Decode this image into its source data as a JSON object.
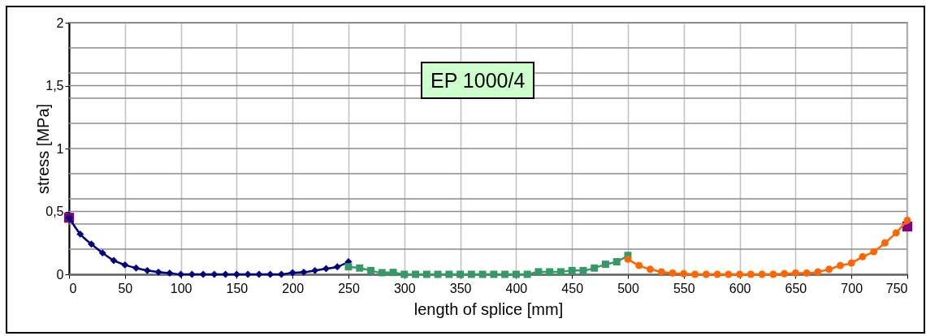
{
  "chart_data": {
    "type": "line",
    "xlabel": "length of splice [mm]",
    "ylabel": "stress [MPa]",
    "annotations": [
      "EP 1000/4"
    ],
    "xlim": [
      0,
      750
    ],
    "xticks": [
      0,
      50,
      100,
      150,
      200,
      250,
      300,
      350,
      400,
      450,
      500,
      550,
      600,
      650,
      700,
      750
    ],
    "ylim": [
      0,
      2
    ],
    "yticks": [
      0,
      {
        "value": 0.2,
        "label": null
      },
      {
        "value": 0.4,
        "label": null
      },
      {
        "value": 0.5,
        "label": "0,5"
      },
      {
        "value": 0.6,
        "label": null
      },
      {
        "value": 0.8,
        "label": null
      },
      1,
      {
        "value": 1.2,
        "label": null
      },
      {
        "value": 1.4,
        "label": null
      },
      {
        "value": 1.5,
        "label": "1,5"
      },
      {
        "value": 1.6,
        "label": null
      },
      {
        "value": 1.8,
        "label": null
      },
      2
    ],
    "grid": true,
    "series": [
      {
        "marker": "diamond",
        "color": "#000080",
        "x": [
          0,
          10,
          20,
          30,
          40,
          50,
          60,
          70,
          80,
          90,
          100,
          110,
          120,
          130,
          140,
          150,
          160,
          170,
          180,
          190,
          200,
          210,
          220,
          230,
          240,
          250
        ],
        "values": [
          0.45,
          0.32,
          0.24,
          0.17,
          0.11,
          0.075,
          0.05,
          0.03,
          0.017,
          0.01,
          0,
          0,
          0,
          0,
          0,
          0,
          0,
          0,
          0,
          0,
          0.013,
          0.017,
          0.03,
          0.045,
          0.06,
          0.1
        ]
      },
      {
        "marker": "square",
        "color": "#339966",
        "x": [
          250,
          260,
          270,
          280,
          290,
          300,
          310,
          320,
          330,
          340,
          350,
          360,
          370,
          380,
          390,
          400,
          410,
          420,
          430,
          440,
          450,
          460,
          470,
          480,
          490,
          500
        ],
        "values": [
          0.06,
          0.05,
          0.03,
          0.013,
          0.015,
          0,
          0,
          0,
          0,
          0,
          0,
          0,
          0,
          0,
          0,
          0,
          0,
          0.02,
          0.02,
          0.02,
          0.03,
          0.03,
          0.05,
          0.08,
          0.1,
          0.15
        ]
      },
      {
        "marker": "circle",
        "color": "#ff6600",
        "x": [
          500,
          510,
          520,
          530,
          540,
          550,
          560,
          570,
          580,
          590,
          600,
          610,
          620,
          630,
          640,
          650,
          660,
          670,
          680,
          690,
          700,
          710,
          720,
          730,
          740,
          750
        ],
        "values": [
          0.12,
          0.07,
          0.04,
          0.02,
          0.01,
          0.005,
          0,
          0,
          0,
          0,
          0,
          0,
          0,
          0,
          0.005,
          0.01,
          0.01,
          0.02,
          0.04,
          0.07,
          0.09,
          0.14,
          0.18,
          0.25,
          0.33,
          0.43
        ]
      },
      {
        "type": "scatter",
        "marker": "square",
        "color": "#800080",
        "x": [
          0,
          750
        ],
        "values": [
          0.45,
          0.38
        ]
      }
    ]
  }
}
